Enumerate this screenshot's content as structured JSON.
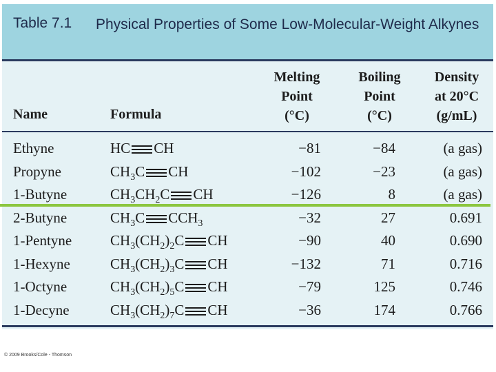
{
  "table": {
    "number": "Table 7.1",
    "title": "Physical Properties of Some Low-Molecular-Weight Alkynes",
    "headers": {
      "name": "Name",
      "formula": "Formula",
      "mp_line1": "Melting",
      "mp_line2": "Point",
      "mp_line3": "(°C)",
      "bp_line1": "Boiling",
      "bp_line2": "Point",
      "bp_line3": "(°C)",
      "d_line1": "Density",
      "d_line2": "at 20°C",
      "d_line3": "(g/mL)"
    },
    "rows": [
      {
        "name": "Ethyne",
        "f_pre": "HC",
        "f_pre_sub": "",
        "f_pre2": "",
        "f_pre2_sub": "",
        "f_pre3": "",
        "f_post": "CH",
        "f_post_sub": "",
        "mp": "−81",
        "bp": "−84",
        "density": "(a gas)"
      },
      {
        "name": "Propyne",
        "f_pre": "CH",
        "f_pre_sub": "3",
        "f_pre2": "C",
        "f_pre2_sub": "",
        "f_pre3": "",
        "f_post": "CH",
        "f_post_sub": "",
        "mp": "−102",
        "bp": "−23",
        "density": "(a gas)"
      },
      {
        "name": "1-Butyne",
        "f_pre": "CH",
        "f_pre_sub": "3",
        "f_pre2": "CH",
        "f_pre2_sub": "2",
        "f_pre3": "C",
        "f_post": "CH",
        "f_post_sub": "",
        "mp": "−126",
        "bp": "8",
        "density": "(a gas)"
      },
      {
        "name": "2-Butyne",
        "f_pre": "CH",
        "f_pre_sub": "3",
        "f_pre2": "C",
        "f_pre2_sub": "",
        "f_pre3": "",
        "f_post": "CCH",
        "f_post_sub": "3",
        "mp": "−32",
        "bp": "27",
        "density": "0.691"
      },
      {
        "name": "1-Pentyne",
        "f_pre": "CH",
        "f_pre_sub": "3",
        "f_pre2": "(CH",
        "f_pre2_sub": "2",
        "f_pre3": ")",
        "f_pre3_sub": "2",
        "f_pre4": "C",
        "f_post": "CH",
        "f_post_sub": "",
        "mp": "−90",
        "bp": "40",
        "density": "0.690"
      },
      {
        "name": "1-Hexyne",
        "f_pre": "CH",
        "f_pre_sub": "3",
        "f_pre2": "(CH",
        "f_pre2_sub": "2",
        "f_pre3": ")",
        "f_pre3_sub": "3",
        "f_pre4": "C",
        "f_post": "CH",
        "f_post_sub": "",
        "mp": "−132",
        "bp": "71",
        "density": "0.716"
      },
      {
        "name": "1-Octyne",
        "f_pre": "CH",
        "f_pre_sub": "3",
        "f_pre2": "(CH",
        "f_pre2_sub": "2",
        "f_pre3": ")",
        "f_pre3_sub": "5",
        "f_pre4": "C",
        "f_post": "CH",
        "f_post_sub": "",
        "mp": "−79",
        "bp": "125",
        "density": "0.746"
      },
      {
        "name": "1-Decyne",
        "f_pre": "CH",
        "f_pre_sub": "3",
        "f_pre2": "(CH",
        "f_pre2_sub": "2",
        "f_pre3": ")",
        "f_pre3_sub": "7",
        "f_pre4": "C",
        "f_post": "CH",
        "f_post_sub": "",
        "mp": "−36",
        "bp": "174",
        "density": "0.766"
      }
    ]
  },
  "copyright": "© 2009 Brooks/Cole - Thomson",
  "colors": {
    "title_band": "#9ed4e0",
    "panel": "#e5f2f5",
    "highlight_line": "#8cc63f"
  }
}
